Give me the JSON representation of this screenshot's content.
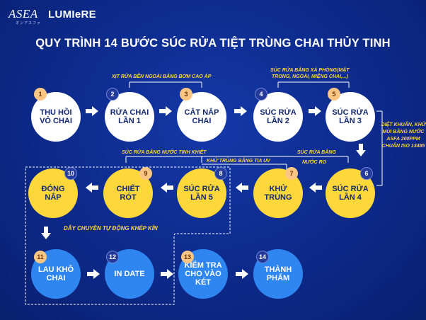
{
  "brand": {
    "asfa": "ASEA",
    "asfa_sub": "オンアスファ",
    "lumiere": "LUMIeRE"
  },
  "title": "QUY TRÌNH 14 BƯỚC SÚC RỬA TIỆT TRÙNG CHAI THỦY TINH",
  "steps": [
    {
      "num": "1",
      "label": "THU HỒI VỎ CHAI"
    },
    {
      "num": "2",
      "label": "RỬA CHAI LẦN 1"
    },
    {
      "num": "3",
      "label": "CẮT NẮP CHAI"
    },
    {
      "num": "4",
      "label": "SÚC RỬA LẦN 2"
    },
    {
      "num": "5",
      "label": "SÚC RỬA LẦN 3"
    },
    {
      "num": "6",
      "label": "SÚC RỬA LẦN 4"
    },
    {
      "num": "7",
      "label": "KHỬ TRÙNG"
    },
    {
      "num": "8",
      "label": "SÚC RỬA LẦN 5"
    },
    {
      "num": "9",
      "label": "CHIẾT RÓT"
    },
    {
      "num": "10",
      "label": "ĐÓNG NẮP"
    },
    {
      "num": "11",
      "label": "LAU KHÔ CHAI"
    },
    {
      "num": "12",
      "label": "IN DATE"
    },
    {
      "num": "13",
      "label": "KIỂM TRA CHO VÀO KÉT"
    },
    {
      "num": "14",
      "label": "THÀNH PHẨM"
    }
  ],
  "annotations": {
    "outside_wash": "XỊT RỬA BÊN NGOÀI BẰNG BƠM CAO ÁP",
    "soap_wash_1": "SÚC RỬA BẰNG XÀ PHÒNG(MẶT",
    "soap_wash_2": "TRONG, NGOÀI, MIỆNG CHAI,...)",
    "pure_water": "SÚC RỬA BẰNG NƯỚC TINH KHIẾT",
    "uv": "KHỬ TRÙNG BẰNG TIA UV",
    "ro_1": "SÚC RỬA BẰNG",
    "ro_2": "NƯỚC RO",
    "side": "DIỆT KHUẨN, KHỬ MÙI BẰNG NƯỚC ASFA 200PPM CHUẨN ISO 13485",
    "conveyor": "DÂY CHUYỀN TỰ ĐỘNG KHÉP KÍN"
  },
  "colors": {
    "background": "#0d2a8a",
    "white_node": "#ffffff",
    "yellow_node": "#fed83a",
    "blue_node": "#2f86f0",
    "annotation": "#ffd43a"
  }
}
